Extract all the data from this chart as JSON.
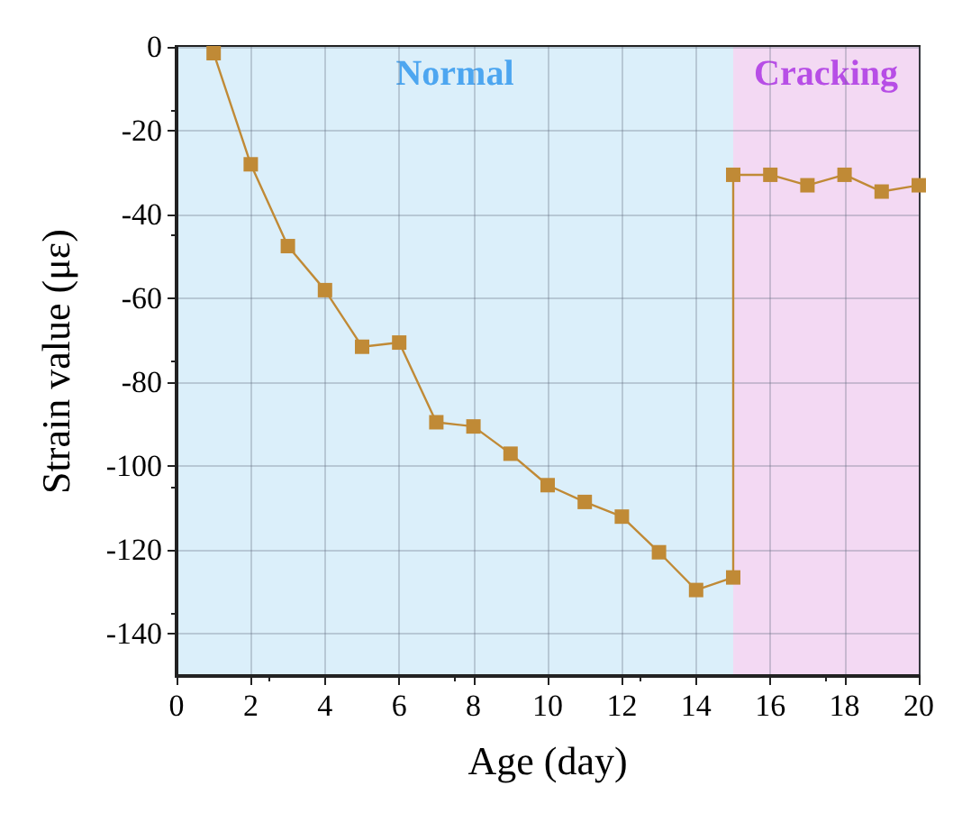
{
  "chart_data": {
    "type": "line",
    "xlabel": "Age (day)",
    "ylabel": "Strain value (με)",
    "x": [
      1,
      2,
      3,
      4,
      5,
      6,
      7,
      8,
      9,
      10,
      11,
      12,
      13,
      14,
      15,
      15,
      16,
      17,
      18,
      19,
      20
    ],
    "series": [
      {
        "color": "#c08a36",
        "values": [
          -1.5,
          -28,
          -47.5,
          -58,
          -71.5,
          -70.5,
          -89.5,
          -90.5,
          -97,
          -104.5,
          -108.5,
          -112,
          -120.5,
          -129.5,
          -126.5,
          -30.5,
          -30.5,
          -33,
          -30.5,
          -34.5,
          -33
        ]
      }
    ],
    "xlim": [
      0,
      20
    ],
    "xticks": [
      0,
      2,
      4,
      6,
      8,
      10,
      12,
      14,
      16,
      18,
      20
    ],
    "ylim": [
      -150,
      0
    ],
    "yticks": [
      -140,
      -120,
      -100,
      -80,
      -60,
      -40,
      -20,
      0
    ],
    "bands": [
      {
        "axis": "x",
        "from": 0,
        "to": 15,
        "label": "Normal",
        "color": "#dbeffa"
      },
      {
        "axis": "x",
        "from": 15,
        "to": 20,
        "label": "Cracking",
        "color": "#f3d9f3"
      }
    ],
    "grid": true,
    "marker": "square"
  }
}
